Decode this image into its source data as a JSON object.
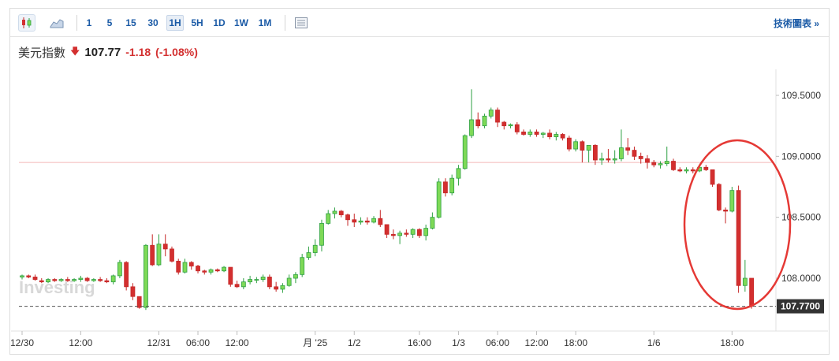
{
  "toolbar": {
    "icons": [
      "candlestick-icon",
      "area-chart-icon",
      "table-icon"
    ],
    "intervals": [
      "1",
      "5",
      "15",
      "30",
      "1H",
      "5H",
      "1D",
      "1W",
      "1M"
    ],
    "selected_interval": "1H",
    "right_link": "技術圖表 »"
  },
  "quote": {
    "name": "美元指數",
    "direction": "down",
    "price": "107.77",
    "change": "-1.18",
    "change_pct": "(-1.08%)"
  },
  "colors": {
    "up": "#2ea043",
    "up_fill": "#7ed957",
    "down": "#c62828",
    "down_fill": "#d32f2f",
    "link": "#1a5aa6",
    "annotation": "#e53935"
  },
  "watermark": "Investing",
  "chart_data": {
    "type": "candlestick",
    "y_axis": {
      "ticks": [
        "109.5000",
        "109.0000",
        "108.5000",
        "108.0000"
      ],
      "ylim": [
        107.62,
        109.75
      ]
    },
    "x_ticks": [
      {
        "label": "12/30",
        "index": 0
      },
      {
        "label": "12:00",
        "index": 9
      },
      {
        "label": "12/31",
        "index": 21
      },
      {
        "label": "06:00",
        "index": 27
      },
      {
        "label": "12:00",
        "index": 33
      },
      {
        "label": "月 '25",
        "index": 45
      },
      {
        "label": "1/2",
        "index": 51
      },
      {
        "label": "16:00",
        "index": 61
      },
      {
        "label": "1/3",
        "index": 67
      },
      {
        "label": "06:00",
        "index": 73
      },
      {
        "label": "12:00",
        "index": 79
      },
      {
        "label": "18:00",
        "index": 85
      },
      {
        "label": "1/6",
        "index": 97
      },
      {
        "label": "18:00",
        "index": 109
      }
    ],
    "last_price_label": "107.7700",
    "last_price": 107.77,
    "reference_line": 108.95,
    "candles": [
      [
        108.01,
        108.03,
        107.99,
        108.02
      ],
      [
        108.02,
        108.03,
        108.0,
        108.01
      ],
      [
        108.01,
        108.03,
        107.98,
        107.99
      ],
      [
        107.98,
        108.0,
        107.96,
        107.97
      ],
      [
        107.97,
        108.0,
        107.96,
        107.99
      ],
      [
        107.99,
        108.0,
        107.97,
        107.98
      ],
      [
        107.98,
        108.0,
        107.97,
        107.99
      ],
      [
        107.99,
        108.01,
        107.97,
        107.98
      ],
      [
        107.98,
        108.0,
        107.97,
        107.99
      ],
      [
        107.99,
        108.02,
        107.97,
        108.0
      ],
      [
        108.0,
        108.01,
        107.97,
        107.98
      ],
      [
        107.98,
        108.0,
        107.97,
        107.99
      ],
      [
        107.99,
        108.01,
        107.97,
        107.98
      ],
      [
        107.98,
        108.0,
        107.96,
        107.97
      ],
      [
        107.97,
        108.03,
        107.95,
        108.02
      ],
      [
        108.02,
        108.15,
        108.0,
        108.13
      ],
      [
        108.13,
        108.14,
        107.9,
        107.93
      ],
      [
        107.93,
        107.96,
        107.82,
        107.85
      ],
      [
        107.85,
        107.85,
        107.75,
        107.76
      ],
      [
        107.76,
        108.28,
        107.74,
        108.27
      ],
      [
        108.27,
        108.36,
        108.1,
        108.11
      ],
      [
        108.11,
        108.36,
        108.1,
        108.28
      ],
      [
        108.28,
        108.36,
        108.18,
        108.24
      ],
      [
        108.24,
        108.26,
        108.13,
        108.14
      ],
      [
        108.14,
        108.16,
        108.03,
        108.05
      ],
      [
        108.05,
        108.16,
        108.04,
        108.13
      ],
      [
        108.13,
        108.14,
        108.07,
        108.1
      ],
      [
        108.1,
        108.11,
        108.04,
        108.06
      ],
      [
        108.06,
        108.07,
        108.03,
        108.05
      ],
      [
        108.05,
        108.08,
        108.03,
        108.07
      ],
      [
        108.07,
        108.08,
        108.05,
        108.06
      ],
      [
        108.06,
        108.1,
        108.05,
        108.09
      ],
      [
        108.09,
        108.09,
        107.93,
        107.95
      ],
      [
        107.95,
        107.98,
        107.92,
        107.93
      ],
      [
        107.93,
        108.0,
        107.91,
        107.97
      ],
      [
        107.97,
        108.02,
        107.95,
        107.99
      ],
      [
        107.99,
        108.01,
        107.96,
        107.99
      ],
      [
        107.99,
        108.03,
        107.97,
        108.01
      ],
      [
        108.01,
        108.03,
        107.91,
        107.93
      ],
      [
        107.93,
        107.97,
        107.89,
        107.91
      ],
      [
        107.91,
        107.96,
        107.88,
        107.94
      ],
      [
        107.94,
        108.03,
        107.93,
        108.0
      ],
      [
        108.0,
        108.05,
        107.96,
        108.03
      ],
      [
        108.03,
        108.2,
        108.01,
        108.17
      ],
      [
        108.17,
        108.26,
        108.15,
        108.21
      ],
      [
        108.21,
        108.32,
        108.18,
        108.27
      ],
      [
        108.27,
        108.48,
        108.22,
        108.45
      ],
      [
        108.45,
        108.56,
        108.44,
        108.53
      ],
      [
        108.53,
        108.58,
        108.49,
        108.55
      ],
      [
        108.55,
        108.56,
        108.5,
        108.52
      ],
      [
        108.52,
        108.53,
        108.43,
        108.48
      ],
      [
        108.48,
        108.53,
        108.42,
        108.46
      ],
      [
        108.46,
        108.5,
        108.44,
        108.47
      ],
      [
        108.47,
        108.5,
        108.44,
        108.46
      ],
      [
        108.46,
        108.51,
        108.45,
        108.49
      ],
      [
        108.49,
        108.56,
        108.42,
        108.44
      ],
      [
        108.44,
        108.44,
        108.33,
        108.36
      ],
      [
        108.36,
        108.4,
        108.32,
        108.35
      ],
      [
        108.35,
        108.39,
        108.28,
        108.37
      ],
      [
        108.37,
        108.4,
        108.34,
        108.36
      ],
      [
        108.36,
        108.41,
        108.33,
        108.4
      ],
      [
        108.4,
        108.41,
        108.33,
        108.35
      ],
      [
        108.35,
        108.44,
        108.31,
        108.41
      ],
      [
        108.41,
        108.54,
        108.4,
        108.5
      ],
      [
        108.5,
        108.82,
        108.49,
        108.79
      ],
      [
        108.79,
        108.82,
        108.67,
        108.7
      ],
      [
        108.7,
        108.85,
        108.68,
        108.82
      ],
      [
        108.82,
        108.93,
        108.76,
        108.9
      ],
      [
        108.9,
        109.18,
        108.89,
        109.17
      ],
      [
        109.17,
        109.55,
        109.15,
        109.3
      ],
      [
        109.3,
        109.36,
        109.23,
        109.25
      ],
      [
        109.25,
        109.35,
        109.23,
        109.33
      ],
      [
        109.33,
        109.4,
        109.31,
        109.38
      ],
      [
        109.38,
        109.4,
        109.24,
        109.28
      ],
      [
        109.28,
        109.29,
        109.22,
        109.25
      ],
      [
        109.25,
        109.27,
        109.23,
        109.26
      ],
      [
        109.26,
        109.28,
        109.18,
        109.2
      ],
      [
        109.2,
        109.22,
        109.17,
        109.18
      ],
      [
        109.18,
        109.22,
        109.16,
        109.2
      ],
      [
        109.2,
        109.22,
        109.16,
        109.18
      ],
      [
        109.18,
        109.2,
        109.15,
        109.19
      ],
      [
        109.19,
        109.22,
        109.14,
        109.16
      ],
      [
        109.16,
        109.2,
        109.13,
        109.18
      ],
      [
        109.18,
        109.19,
        109.13,
        109.15
      ],
      [
        109.15,
        109.17,
        109.04,
        109.06
      ],
      [
        109.06,
        109.14,
        109.04,
        109.12
      ],
      [
        109.12,
        109.13,
        108.95,
        109.05
      ],
      [
        109.05,
        109.08,
        108.95,
        109.09
      ],
      [
        109.09,
        109.1,
        108.93,
        108.97
      ],
      [
        108.97,
        109.03,
        108.93,
        108.98
      ],
      [
        108.98,
        109.06,
        108.95,
        108.97
      ],
      [
        108.97,
        109.05,
        108.94,
        108.98
      ],
      [
        108.98,
        109.22,
        108.96,
        109.07
      ],
      [
        109.07,
        109.15,
        109.01,
        109.05
      ],
      [
        109.05,
        109.08,
        108.97,
        109.0
      ],
      [
        109.0,
        109.03,
        108.94,
        108.98
      ],
      [
        108.98,
        109.01,
        108.9,
        108.95
      ],
      [
        108.95,
        108.97,
        108.91,
        108.93
      ],
      [
        108.93,
        108.96,
        108.9,
        108.94
      ],
      [
        108.94,
        109.08,
        108.92,
        108.96
      ],
      [
        108.96,
        108.98,
        108.88,
        108.89
      ],
      [
        108.89,
        108.91,
        108.87,
        108.88
      ],
      [
        108.88,
        108.91,
        108.86,
        108.89
      ],
      [
        108.89,
        108.91,
        108.86,
        108.88
      ],
      [
        108.88,
        108.92,
        108.87,
        108.91
      ],
      [
        108.91,
        108.93,
        108.88,
        108.89
      ],
      [
        108.89,
        108.89,
        108.75,
        108.77
      ],
      [
        108.77,
        108.78,
        108.55,
        108.56
      ],
      [
        108.56,
        108.58,
        108.45,
        108.55
      ],
      [
        108.55,
        108.75,
        108.54,
        108.72
      ],
      [
        108.72,
        108.76,
        107.88,
        107.94
      ],
      [
        107.94,
        108.15,
        107.89,
        108.0
      ],
      [
        108.0,
        108.0,
        107.75,
        107.77
      ]
    ]
  }
}
